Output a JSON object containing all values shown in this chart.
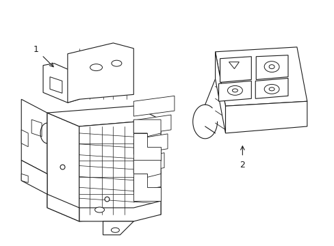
{
  "background_color": "#ffffff",
  "line_color": "#1a1a1a",
  "line_width": 0.8,
  "label_1_text": "1",
  "label_2_text": "2"
}
